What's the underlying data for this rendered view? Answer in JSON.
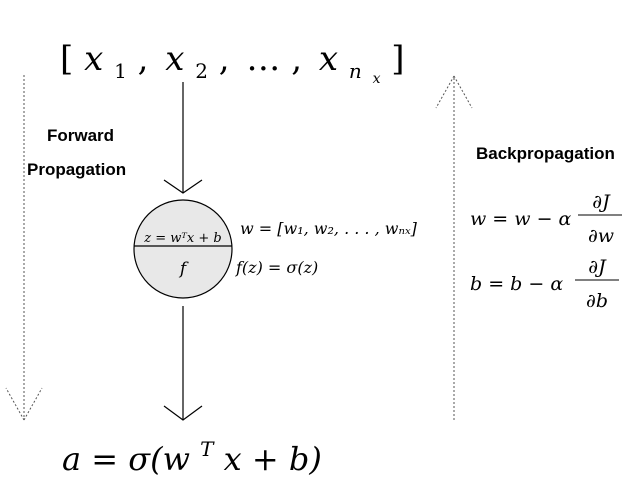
{
  "input": {
    "open_bracket": "[",
    "x1_base": "x",
    "x1_sub": "1",
    "sep1": ",",
    "x2_base": "x",
    "x2_sub": "2",
    "sep2": ",",
    "dots": "…",
    "sep3": ",",
    "xn_base": "x",
    "xn_sub": "n",
    "xn_subsub": "x",
    "close_bracket": "]"
  },
  "forward": {
    "line1": "Forward",
    "line2": "Propagation"
  },
  "backward": {
    "label": "Backpropagation"
  },
  "neuron": {
    "top_label": "z = wᵀx + b",
    "bottom_label": "f"
  },
  "weights": {
    "text": "w = [w₁, w₂, . . . , wₙₓ]"
  },
  "activation": {
    "text": "f(z) = σ(z)"
  },
  "update_w": {
    "lhs": "w = w − α",
    "numerator": "∂J",
    "denominator": "∂w"
  },
  "update_b": {
    "lhs": "b = b − α",
    "numerator": "∂J",
    "denominator": "∂b"
  },
  "output": {
    "text_before_sup": "a = σ(w",
    "sup": "T",
    "text_after_sup": "x + b)"
  }
}
